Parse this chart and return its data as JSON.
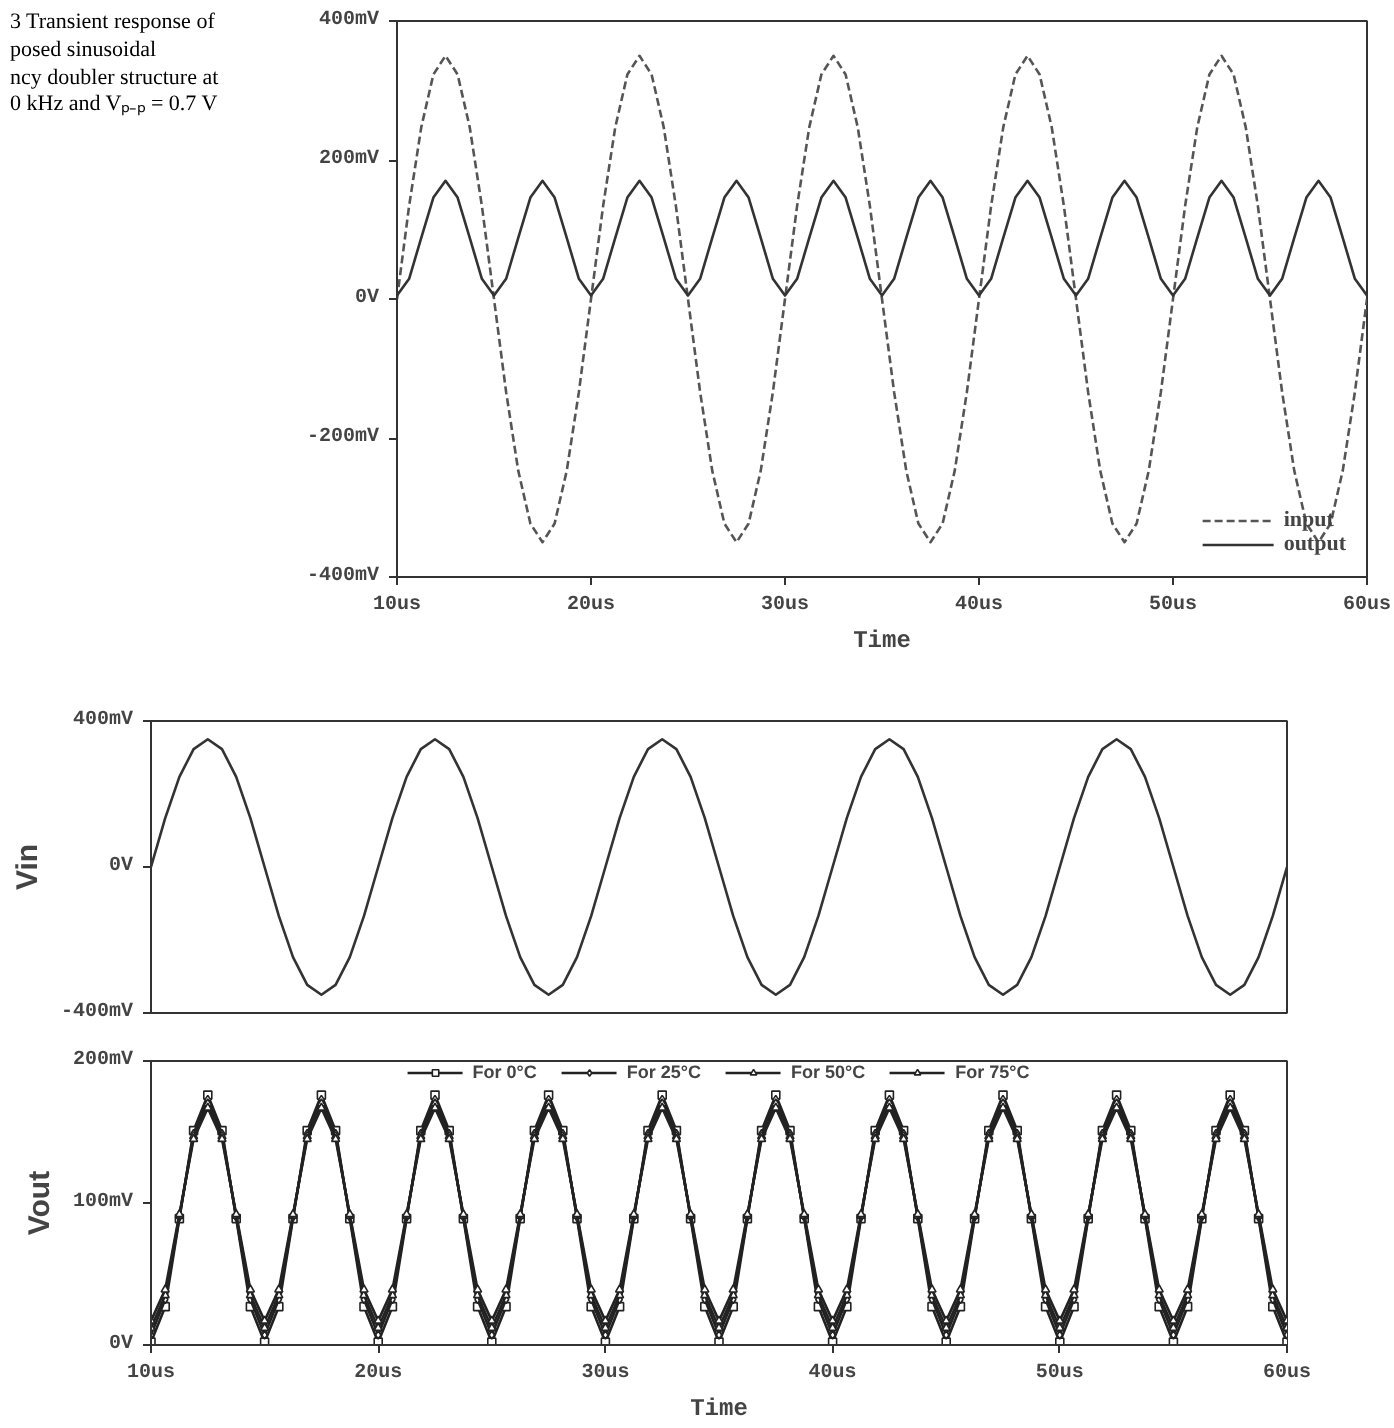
{
  "chart_data": [
    {
      "type": "line",
      "annotations": [
        "3 Transient response of\nposed sinusoidal\nncy doubler structure at\n0 kHz and Vₚ₋ₚ = 0.7 V"
      ],
      "xlabel": "Time",
      "xlim": [
        10,
        60
      ],
      "ylim": [
        -400,
        400
      ],
      "xticks": [
        {
          "value": 10,
          "label": "10us"
        },
        {
          "value": 20,
          "label": "20us"
        },
        {
          "value": 30,
          "label": "30us"
        },
        {
          "value": 40,
          "label": "40us"
        },
        {
          "value": 50,
          "label": "50us"
        },
        {
          "value": 60,
          "label": "60us"
        }
      ],
      "yticks": [
        {
          "value": -400,
          "label": "-400mV"
        },
        {
          "value": -200,
          "label": "-200mV"
        },
        {
          "value": 0,
          "label": "0V"
        },
        {
          "value": 200,
          "label": "200mV"
        },
        {
          "value": 400,
          "label": "400mV"
        }
      ],
      "legend": "bottom right",
      "x": [
        10,
        10.625,
        11.25,
        11.875,
        12.5,
        13.125,
        13.75,
        14.375,
        15,
        15.625,
        16.25,
        16.875,
        17.5,
        18.125,
        18.75,
        19.375,
        20,
        20.625,
        21.25,
        21.875,
        22.5,
        23.125,
        23.75,
        24.375,
        25,
        25.625,
        26.25,
        26.875,
        27.5,
        28.125,
        28.75,
        29.375,
        30,
        30.625,
        31.25,
        31.875,
        32.5,
        33.125,
        33.75,
        34.375,
        35,
        35.625,
        36.25,
        36.875,
        37.5,
        38.125,
        38.75,
        39.375,
        40,
        40.625,
        41.25,
        41.875,
        42.5,
        43.125,
        43.75,
        44.375,
        45,
        45.625,
        46.25,
        46.875,
        47.5,
        48.125,
        48.75,
        49.375,
        50,
        50.625,
        51.25,
        51.875,
        52.5,
        53.125,
        53.75,
        54.375,
        55,
        55.625,
        56.25,
        56.875,
        57.5,
        58.125,
        58.75,
        59.375,
        60
      ],
      "series": [
        {
          "name": "input",
          "color": "#555555",
          "line_style": "dashed",
          "values": [
            0,
            134,
            247,
            323,
            350,
            323,
            247,
            134,
            0,
            -134,
            -247,
            -323,
            -350,
            -323,
            -247,
            -134,
            0,
            134,
            247,
            323,
            350,
            323,
            247,
            134,
            0,
            -134,
            -247,
            -323,
            -350,
            -323,
            -247,
            -134,
            0,
            134,
            247,
            323,
            350,
            323,
            247,
            134,
            0,
            -134,
            -247,
            -323,
            -350,
            -323,
            -247,
            -134,
            0,
            134,
            247,
            323,
            350,
            323,
            247,
            134,
            0,
            -134,
            -247,
            -323,
            -350,
            -323,
            -247,
            -134,
            0,
            134,
            247,
            323,
            350,
            323,
            247,
            134,
            0,
            -134,
            -247,
            -323,
            -350,
            -323,
            -247,
            -134,
            0
          ]
        },
        {
          "name": "output",
          "color": "#333333",
          "line_style": "solid",
          "values": [
            5,
            29,
            88,
            146,
            170,
            146,
            88,
            29,
            5,
            29,
            88,
            146,
            170,
            146,
            88,
            29,
            5,
            29,
            88,
            146,
            170,
            146,
            88,
            29,
            5,
            29,
            88,
            146,
            170,
            146,
            88,
            29,
            5,
            29,
            88,
            146,
            170,
            146,
            88,
            29,
            5,
            29,
            88,
            146,
            170,
            146,
            88,
            29,
            5,
            29,
            88,
            146,
            170,
            146,
            88,
            29,
            5,
            29,
            88,
            146,
            170,
            146,
            88,
            29,
            5,
            29,
            88,
            146,
            170,
            146,
            88,
            29,
            5,
            29,
            88,
            146,
            170,
            146,
            88,
            29,
            5
          ]
        }
      ]
    },
    {
      "type": "line",
      "ylabel": "Vin",
      "xlim": [
        10,
        60
      ],
      "ylim": [
        -400,
        400
      ],
      "tick_labels": "y",
      "yticks": [
        {
          "value": -400,
          "label": "-400mV"
        },
        {
          "value": 0,
          "label": "0V"
        },
        {
          "value": 400,
          "label": "400mV"
        }
      ],
      "x": [
        10,
        10.625,
        11.25,
        11.875,
        12.5,
        13.125,
        13.75,
        14.375,
        15,
        15.625,
        16.25,
        16.875,
        17.5,
        18.125,
        18.75,
        19.375,
        20,
        20.625,
        21.25,
        21.875,
        22.5,
        23.125,
        23.75,
        24.375,
        25,
        25.625,
        26.25,
        26.875,
        27.5,
        28.125,
        28.75,
        29.375,
        30,
        30.625,
        31.25,
        31.875,
        32.5,
        33.125,
        33.75,
        34.375,
        35,
        35.625,
        36.25,
        36.875,
        37.5,
        38.125,
        38.75,
        39.375,
        40,
        40.625,
        41.25,
        41.875,
        42.5,
        43.125,
        43.75,
        44.375,
        45,
        45.625,
        46.25,
        46.875,
        47.5,
        48.125,
        48.75,
        49.375,
        50,
        50.625,
        51.25,
        51.875,
        52.5,
        53.125,
        53.75,
        54.375,
        55,
        55.625,
        56.25,
        56.875,
        57.5,
        58.125,
        58.75,
        59.375,
        60
      ],
      "series": [
        {
          "color": "#333333",
          "line_style": "solid",
          "values": [
            0,
            134,
            247,
            323,
            350,
            323,
            247,
            134,
            0,
            -134,
            -247,
            -323,
            -350,
            -323,
            -247,
            -134,
            0,
            134,
            247,
            323,
            350,
            323,
            247,
            134,
            0,
            -134,
            -247,
            -323,
            -350,
            -323,
            -247,
            -134,
            0,
            134,
            247,
            323,
            350,
            323,
            247,
            134,
            0,
            -134,
            -247,
            -323,
            -350,
            -323,
            -247,
            -134,
            0,
            134,
            247,
            323,
            350,
            323,
            247,
            134,
            0,
            -134,
            -247,
            -323,
            -350,
            -323,
            -247,
            -134,
            0,
            134,
            247,
            323,
            350,
            323,
            247,
            134,
            0,
            -134,
            -247,
            -323,
            -350,
            -323,
            -247,
            -134,
            0
          ]
        }
      ]
    },
    {
      "type": "line",
      "xlabel": "Time",
      "ylabel": "Vout",
      "xlim": [
        10,
        60
      ],
      "ylim": [
        0,
        200
      ],
      "legend": "top",
      "xticks": [
        {
          "value": 10,
          "label": "10us"
        },
        {
          "value": 20,
          "label": "20us"
        },
        {
          "value": 30,
          "label": "30us"
        },
        {
          "value": 40,
          "label": "40us"
        },
        {
          "value": 50,
          "label": "50us"
        },
        {
          "value": 60,
          "label": "60us"
        }
      ],
      "yticks": [
        {
          "value": 0,
          "label": "0V"
        },
        {
          "value": 100,
          "label": "100mV"
        },
        {
          "value": 200,
          "label": "200mV"
        }
      ],
      "x": [
        10,
        10.625,
        11.25,
        11.875,
        12.5,
        13.125,
        13.75,
        14.375,
        15,
        15.625,
        16.25,
        16.875,
        17.5,
        18.125,
        18.75,
        19.375,
        20,
        20.625,
        21.25,
        21.875,
        22.5,
        23.125,
        23.75,
        24.375,
        25,
        25.625,
        26.25,
        26.875,
        27.5,
        28.125,
        28.75,
        29.375,
        30,
        30.625,
        31.25,
        31.875,
        32.5,
        33.125,
        33.75,
        34.375,
        35,
        35.625,
        36.25,
        36.875,
        37.5,
        38.125,
        38.75,
        39.375,
        40,
        40.625,
        41.25,
        41.875,
        42.5,
        43.125,
        43.75,
        44.375,
        45,
        45.625,
        46.25,
        46.875,
        47.5,
        48.125,
        48.75,
        49.375,
        50,
        50.625,
        51.25,
        51.875,
        52.5,
        53.125,
        53.75,
        54.375,
        55,
        55.625,
        56.25,
        56.875,
        57.5,
        58.125,
        58.75,
        59.375,
        60
      ],
      "series": [
        {
          "name": "For 0°C",
          "color": "#222222",
          "marker": "square",
          "values": [
            2,
            27,
            89,
            151,
            176,
            151,
            89,
            27,
            2,
            27,
            89,
            151,
            176,
            151,
            89,
            27,
            2,
            27,
            89,
            151,
            176,
            151,
            89,
            27,
            2,
            27,
            89,
            151,
            176,
            151,
            89,
            27,
            2,
            27,
            89,
            151,
            176,
            151,
            89,
            27,
            2,
            27,
            89,
            151,
            176,
            151,
            89,
            27,
            2,
            27,
            89,
            151,
            176,
            151,
            89,
            27,
            2,
            27,
            89,
            151,
            176,
            151,
            89,
            27,
            2,
            27,
            89,
            151,
            176,
            151,
            89,
            27,
            2,
            27,
            89,
            151,
            176,
            151,
            89,
            27,
            2
          ]
        },
        {
          "name": "For 25°C",
          "color": "#222222",
          "marker": "diamond",
          "values": [
            7,
            32,
            90,
            149,
            173,
            149,
            90,
            32,
            7,
            32,
            90,
            149,
            173,
            149,
            90,
            32,
            7,
            32,
            90,
            149,
            173,
            149,
            90,
            32,
            7,
            32,
            90,
            149,
            173,
            149,
            90,
            32,
            7,
            32,
            90,
            149,
            173,
            149,
            90,
            32,
            7,
            32,
            90,
            149,
            173,
            149,
            90,
            32,
            7,
            32,
            90,
            149,
            173,
            149,
            90,
            32,
            7,
            32,
            90,
            149,
            173,
            149,
            90,
            32,
            7,
            32,
            90,
            149,
            173,
            149,
            90,
            32,
            7,
            32,
            90,
            149,
            173,
            149,
            90,
            32,
            7
          ]
        },
        {
          "name": "For 50°C",
          "color": "#222222",
          "marker": "triangle",
          "values": [
            12,
            35,
            91,
            147,
            170,
            147,
            91,
            35,
            12,
            35,
            91,
            147,
            170,
            147,
            91,
            35,
            12,
            35,
            91,
            147,
            170,
            147,
            91,
            35,
            12,
            35,
            91,
            147,
            170,
            147,
            91,
            35,
            12,
            35,
            91,
            147,
            170,
            147,
            91,
            35,
            12,
            35,
            91,
            147,
            170,
            147,
            91,
            35,
            12,
            35,
            91,
            147,
            170,
            147,
            91,
            35,
            12,
            35,
            91,
            147,
            170,
            147,
            91,
            35,
            12,
            35,
            91,
            147,
            170,
            147,
            91,
            35,
            12,
            35,
            91,
            147,
            170,
            147,
            91,
            35,
            12
          ]
        },
        {
          "name": "For 75°C",
          "color": "#222222",
          "marker": "triangle",
          "values": [
            17,
            39,
            92,
            145,
            167,
            145,
            92,
            39,
            17,
            39,
            92,
            145,
            167,
            145,
            92,
            39,
            17,
            39,
            92,
            145,
            167,
            145,
            92,
            39,
            17,
            39,
            92,
            145,
            167,
            145,
            92,
            39,
            17,
            39,
            92,
            145,
            167,
            145,
            92,
            39,
            17,
            39,
            92,
            145,
            167,
            145,
            92,
            39,
            17,
            39,
            92,
            145,
            167,
            145,
            92,
            39,
            17,
            39,
            92,
            145,
            167,
            145,
            92,
            39,
            17,
            39,
            92,
            145,
            167,
            145,
            92,
            39,
            17,
            39,
            92,
            145,
            167,
            145,
            92,
            39,
            17
          ]
        }
      ]
    }
  ]
}
